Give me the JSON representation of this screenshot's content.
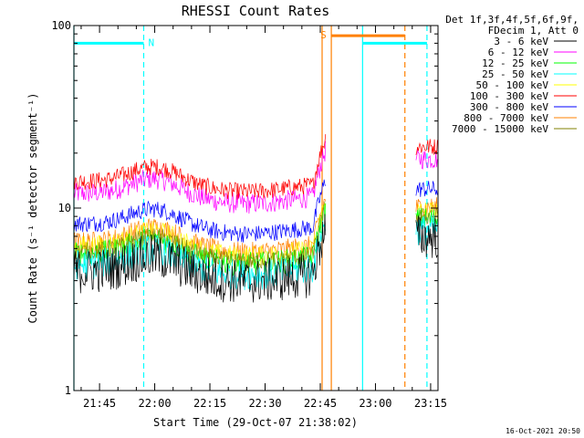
{
  "chart_data": {
    "type": "line",
    "title": "RHESSI Count Rates",
    "xlabel": "Start Time (29-Oct-07 21:38:02)",
    "ylabel": "Count Rate (s⁻¹ detector segment⁻¹)",
    "yscale": "log",
    "ylim": [
      1,
      100
    ],
    "xlim": [
      "21:38:02",
      "23:17:00"
    ],
    "x_ticks": [
      "21:45",
      "22:00",
      "22:15",
      "22:30",
      "22:45",
      "23:00",
      "23:15"
    ],
    "y_ticks": [
      "1",
      "10",
      "100"
    ],
    "legend_header": [
      "Det 1f,3f,4f,5f,6f,9f,",
      "FDecim 1, Att 0"
    ],
    "legend_position": "right",
    "footer_date": "16-Oct-2021 20:50",
    "series": [
      {
        "name": "3 - 6 keV",
        "color": "#000000",
        "base": 4.5,
        "noise": 0.13
      },
      {
        "name": "6 - 12 keV",
        "color": "#ff00ff",
        "base": 12,
        "noise": 0.06
      },
      {
        "name": "12 - 25 keV",
        "color": "#00ff00",
        "base": 5.6,
        "noise": 0.07
      },
      {
        "name": "25 - 50 keV",
        "color": "#00ffff",
        "base": 4.9,
        "noise": 0.09
      },
      {
        "name": "50 - 100 keV",
        "color": "#ffff00",
        "base": 6.2,
        "noise": 0.06
      },
      {
        "name": "100 - 300 keV",
        "color": "#ff0000",
        "base": 14,
        "noise": 0.05
      },
      {
        "name": "300 - 800 keV",
        "color": "#0000ff",
        "base": 8.2,
        "noise": 0.05
      },
      {
        "name": "800 - 7000 keV",
        "color": "#ff8000",
        "base": 6.5,
        "noise": 0.06
      },
      {
        "name": "7000 - 15000 keV",
        "color": "#808000",
        "base": 5.8,
        "noise": 0.05
      }
    ],
    "data_gap": {
      "start": "22:46:30",
      "end": "23:11:00"
    },
    "flags": [
      {
        "label": "N",
        "color": "#00ffff",
        "start": "21:38:02",
        "end": "21:57:00",
        "level": 80
      },
      {
        "label": "S",
        "color": "#ff8000",
        "start": "22:48:00",
        "end": "23:08:00",
        "level": 88
      },
      {
        "label": "",
        "color": "#00ffff",
        "start": "22:56:30",
        "end": "23:14:00",
        "level": 80
      }
    ],
    "vlines": [
      {
        "time": "21:38:02",
        "color": "#00ffff",
        "style": "solid"
      },
      {
        "time": "21:57:00",
        "color": "#00ffff",
        "style": "dashed"
      },
      {
        "time": "22:45:30",
        "color": "#ff8000",
        "style": "solid"
      },
      {
        "time": "22:48:00",
        "color": "#ff8000",
        "style": "solid"
      },
      {
        "time": "22:56:30",
        "color": "#00ffff",
        "style": "solid"
      },
      {
        "time": "23:08:00",
        "color": "#ff8000",
        "style": "dashed"
      },
      {
        "time": "23:14:00",
        "color": "#00ffff",
        "style": "dashed"
      }
    ]
  }
}
